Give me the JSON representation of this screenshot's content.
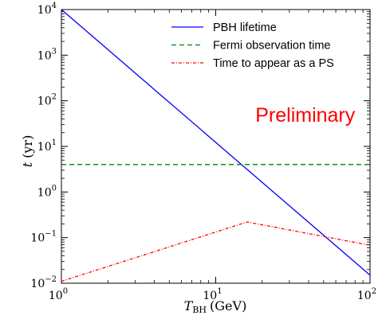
{
  "chart_data": {
    "type": "line",
    "title": "",
    "x_axis": {
      "scale": "log",
      "lim": [
        1,
        100
      ],
      "label_main": "T",
      "label_sub": "BH",
      "label_unit": "(GeV)",
      "ticks": [
        {
          "value": 1,
          "base": "10",
          "exp": "0"
        },
        {
          "value": 10,
          "base": "10",
          "exp": "1"
        },
        {
          "value": 100,
          "base": "10",
          "exp": "2"
        }
      ]
    },
    "y_axis": {
      "scale": "log",
      "lim": [
        0.01,
        10000
      ],
      "label_main": "t",
      "label_unit": "(yr)",
      "ticks": [
        {
          "value": 0.01,
          "base": "10",
          "exp": "−2"
        },
        {
          "value": 0.1,
          "base": "10",
          "exp": "−1"
        },
        {
          "value": 1,
          "base": "10",
          "exp": "0"
        },
        {
          "value": 10,
          "base": "10",
          "exp": "1"
        },
        {
          "value": 100,
          "base": "10",
          "exp": "2"
        },
        {
          "value": 1000,
          "base": "10",
          "exp": "3"
        },
        {
          "value": 10000,
          "base": "10",
          "exp": "4"
        }
      ]
    },
    "grid": false,
    "legend": {
      "placement": "top-right"
    },
    "series": [
      {
        "name": "PBH lifetime",
        "color": "#0000ff",
        "style": "solid",
        "x": [
          1.0,
          100.0
        ],
        "y": [
          10000,
          0.015
        ]
      },
      {
        "name": "Fermi observation time",
        "color": "#008000",
        "style": "dashed",
        "x": [
          1.0,
          100.0
        ],
        "y": [
          4.0,
          4.0
        ]
      },
      {
        "name": "Time to appear as a PS",
        "color": "#ff0000",
        "style": "dashdot",
        "x": [
          1.0,
          16.0,
          100.0
        ],
        "y": [
          0.011,
          0.22,
          0.068
        ]
      }
    ],
    "annotations": [
      {
        "text": "Preliminary",
        "color": "#ff0000",
        "x": 32,
        "y": 50
      }
    ]
  }
}
